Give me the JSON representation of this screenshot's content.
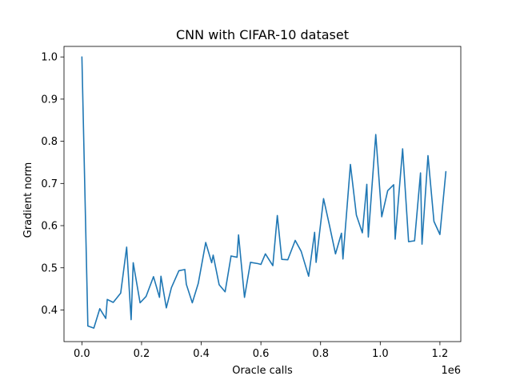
{
  "chart_data": {
    "type": "line",
    "title": "CNN with CIFAR-10 dataset",
    "xlabel": "Oracle calls",
    "ylabel": "Gradient norm",
    "x_offset_label": "1e6",
    "xlim": [
      -0.06,
      1.27
    ],
    "ylim": [
      0.325,
      1.025
    ],
    "xticks": [
      0.0,
      0.2,
      0.4,
      0.6,
      0.8,
      1.0,
      1.2
    ],
    "xtick_labels": [
      "0.0",
      "0.2",
      "0.4",
      "0.6",
      "0.8",
      "1.0",
      "1.2"
    ],
    "yticks": [
      0.4,
      0.5,
      0.6,
      0.7,
      0.8,
      0.9,
      1.0
    ],
    "ytick_labels": [
      "0.4",
      "0.5",
      "0.6",
      "0.7",
      "0.8",
      "0.9",
      "1.0"
    ],
    "grid": false,
    "color": "#1f77b4",
    "series": [
      {
        "x": [
          0.0,
          0.02,
          0.04,
          0.06,
          0.08,
          0.085,
          0.105,
          0.13,
          0.15,
          0.165,
          0.172,
          0.195,
          0.215,
          0.24,
          0.26,
          0.265,
          0.283,
          0.3,
          0.325,
          0.345,
          0.35,
          0.37,
          0.39,
          0.415,
          0.435,
          0.44,
          0.46,
          0.48,
          0.5,
          0.52,
          0.525,
          0.545,
          0.565,
          0.59,
          0.6,
          0.615,
          0.64,
          0.655,
          0.67,
          0.69,
          0.715,
          0.735,
          0.76,
          0.78,
          0.785,
          0.81,
          0.83,
          0.85,
          0.87,
          0.875,
          0.9,
          0.92,
          0.94,
          0.955,
          0.96,
          0.985,
          1.005,
          1.025,
          1.045,
          1.05,
          1.075,
          1.095,
          1.115,
          1.135,
          1.14,
          1.16,
          1.18,
          1.2,
          1.22
        ],
        "y": [
          1.0,
          0.362,
          0.357,
          0.403,
          0.38,
          0.425,
          0.418,
          0.44,
          0.549,
          0.377,
          0.512,
          0.417,
          0.432,
          0.479,
          0.43,
          0.48,
          0.405,
          0.453,
          0.493,
          0.496,
          0.461,
          0.417,
          0.463,
          0.56,
          0.512,
          0.53,
          0.46,
          0.443,
          0.528,
          0.525,
          0.578,
          0.43,
          0.513,
          0.51,
          0.508,
          0.533,
          0.505,
          0.624,
          0.52,
          0.519,
          0.565,
          0.539,
          0.48,
          0.584,
          0.513,
          0.664,
          0.6,
          0.533,
          0.582,
          0.521,
          0.745,
          0.625,
          0.583,
          0.698,
          0.573,
          0.816,
          0.621,
          0.683,
          0.697,
          0.568,
          0.782,
          0.562,
          0.564,
          0.725,
          0.556,
          0.766,
          0.61,
          0.579,
          0.728
        ]
      }
    ]
  }
}
